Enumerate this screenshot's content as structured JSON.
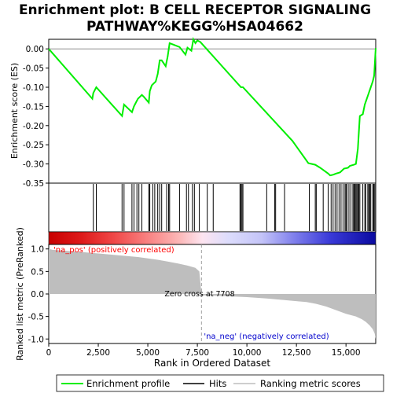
{
  "title_line1": "Enrichment plot: B CELL RECEPTOR SIGNALING",
  "title_line2": "PATHWAY%KEGG%HSA04662",
  "colors": {
    "es_line": "#00ee00",
    "hit": "#000000",
    "metric_fill": "#bebebe",
    "pos_label": "#ff0000",
    "neg_label": "#0000cd",
    "zero_line": "#a0a0a0"
  },
  "chart_data": [
    {
      "type": "line",
      "name": "enrichment-profile",
      "ylabel": "Enrichment score (ES)",
      "ylim": [
        -0.35,
        0.02
      ],
      "yticks": [
        0.0,
        -0.05,
        -0.1,
        -0.15,
        -0.2,
        -0.25,
        -0.3,
        -0.35
      ],
      "ytick_labels": [
        "0.00",
        "-0.05",
        "-0.10",
        "-0.15",
        "-0.20",
        "-0.25",
        "-0.30",
        "-0.35"
      ],
      "xlim": [
        0,
        16500
      ],
      "x": [
        0,
        2200,
        2250,
        2400,
        3700,
        3800,
        4200,
        4300,
        4400,
        4500,
        4600,
        4700,
        4800,
        5050,
        5100,
        5200,
        5300,
        5400,
        5500,
        5600,
        5700,
        5900,
        6000,
        6100,
        6600,
        6900,
        7000,
        7200,
        7300,
        7400,
        7500,
        7650,
        9700,
        9800,
        12300,
        13100,
        13450,
        13700,
        14100,
        14200,
        14350,
        14500,
        14700,
        14900,
        15100,
        15200,
        15400,
        15500,
        15600,
        15700,
        15850,
        15950,
        16050,
        16150,
        16250,
        16350,
        16420,
        16450,
        16480,
        16500
      ],
      "y": [
        0.0,
        -0.13,
        -0.115,
        -0.1,
        -0.175,
        -0.145,
        -0.165,
        -0.15,
        -0.14,
        -0.13,
        -0.125,
        -0.12,
        -0.125,
        -0.14,
        -0.11,
        -0.095,
        -0.09,
        -0.085,
        -0.065,
        -0.03,
        -0.03,
        -0.045,
        -0.02,
        0.015,
        0.005,
        -0.015,
        0.003,
        -0.005,
        0.025,
        0.015,
        0.022,
        0.018,
        -0.1,
        -0.1,
        -0.24,
        -0.298,
        -0.302,
        -0.31,
        -0.325,
        -0.33,
        -0.328,
        -0.325,
        -0.322,
        -0.312,
        -0.31,
        -0.305,
        -0.302,
        -0.3,
        -0.26,
        -0.175,
        -0.17,
        -0.145,
        -0.13,
        -0.115,
        -0.1,
        -0.085,
        -0.07,
        -0.045,
        -0.015,
        0.002
      ]
    },
    {
      "type": "scatter",
      "name": "hits",
      "xlim": [
        0,
        16500
      ],
      "x": [
        2250,
        2400,
        3700,
        3800,
        4200,
        4300,
        4450,
        4550,
        4700,
        5050,
        5100,
        5250,
        5350,
        5500,
        5600,
        5700,
        5950,
        6050,
        6100,
        6600,
        6950,
        7050,
        7250,
        7350,
        7600,
        8000,
        8300,
        9650,
        9700,
        9750,
        9800,
        11000,
        11400,
        11450,
        11900,
        13150,
        13450,
        13500,
        13850,
        14100,
        14250,
        14350,
        14450,
        14550,
        14650,
        14750,
        14850,
        14950,
        15000,
        15050,
        15150,
        15250,
        15350,
        15400,
        15450,
        15500,
        15550,
        15600,
        15650,
        15700,
        15850,
        15950,
        16000,
        16100,
        16150,
        16200,
        16250,
        16350,
        16400,
        16450
      ]
    },
    {
      "type": "area",
      "name": "ranked-list-metric",
      "xlabel": "Rank in Ordered Dataset",
      "ylabel": "Ranked list metric (PreRanked)",
      "ylim": [
        -1.1,
        1.1
      ],
      "yticks": [
        1.0,
        0.5,
        0.0,
        -0.5,
        -1.0
      ],
      "ytick_labels": [
        "1.0",
        "0.5",
        "0.0",
        "-0.5",
        "-1.0"
      ],
      "xlim": [
        0,
        16500
      ],
      "xticks": [
        0,
        2500,
        5000,
        7500,
        10000,
        12500,
        15000
      ],
      "xtick_labels": [
        "0",
        "2,500",
        "5,000",
        "7,500",
        "10,000",
        "12,500",
        "15,000"
      ],
      "x": [
        0,
        200,
        800,
        1700,
        2500,
        3500,
        4500,
        5500,
        6000,
        6500,
        7000,
        7400,
        7600,
        7708,
        7800,
        9000,
        10000,
        11000,
        12000,
        13000,
        13500,
        14000,
        14500,
        15000,
        15500,
        15800,
        16000,
        16200,
        16350,
        16450,
        16500
      ],
      "y": [
        1.0,
        0.98,
        0.96,
        0.93,
        0.9,
        0.86,
        0.82,
        0.76,
        0.72,
        0.68,
        0.63,
        0.58,
        0.5,
        0.0,
        -0.03,
        -0.05,
        -0.07,
        -0.1,
        -0.14,
        -0.18,
        -0.22,
        -0.28,
        -0.36,
        -0.44,
        -0.5,
        -0.56,
        -0.62,
        -0.7,
        -0.78,
        -0.88,
        -1.0
      ]
    }
  ],
  "annotations": {
    "pos_label": "'na_pos' (positively correlated)",
    "neg_label": "'na_neg' (negatively correlated)",
    "zero_cross": "Zero cross at 7708",
    "zero_cross_value": 7708
  },
  "legend": {
    "items": [
      {
        "label": "Enrichment profile",
        "kind": "green-line"
      },
      {
        "label": "Hits",
        "kind": "black-line"
      },
      {
        "label": "Ranking metric scores",
        "kind": "gray-line"
      }
    ]
  }
}
